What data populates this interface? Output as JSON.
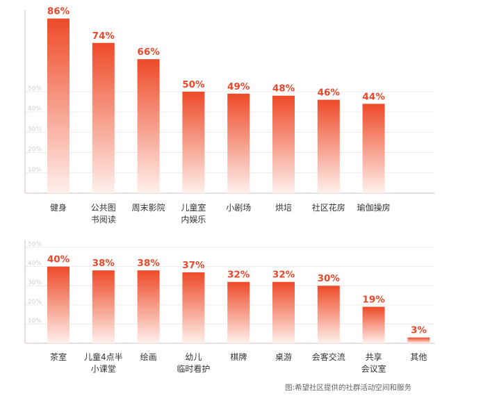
{
  "colors": {
    "bar_top": "#ee4a28",
    "bar_bottom": "#fff0ec",
    "label": "#e8482b",
    "axis": "#e3d4d0",
    "grid": "#ececec"
  },
  "chart_data": [
    {
      "type": "bar",
      "categories": [
        [
          "健身"
        ],
        [
          "公共图",
          "书阅读"
        ],
        [
          "周末影院"
        ],
        [
          "儿童室",
          "内娱乐"
        ],
        [
          "小剧场"
        ],
        [
          "烘培"
        ],
        [
          "社区花房"
        ],
        [
          "瑜伽操房"
        ]
      ],
      "values": [
        86,
        74,
        66,
        50,
        49,
        48,
        46,
        44
      ],
      "labels": [
        "86%",
        "74%",
        "66%",
        "50%",
        "49%",
        "48%",
        "46%",
        "44%"
      ],
      "y_ticks": [
        "10%",
        "20%",
        "30%",
        "40%",
        "50%"
      ],
      "ylim": [
        0,
        90
      ]
    },
    {
      "type": "bar",
      "categories": [
        [
          "茶室"
        ],
        [
          "儿童4点半",
          "小课堂"
        ],
        [
          "绘画"
        ],
        [
          "幼儿",
          "临时看护"
        ],
        [
          "棋牌"
        ],
        [
          "桌游"
        ],
        [
          "会客交流"
        ],
        [
          "共享",
          "会议室"
        ],
        [
          "其他"
        ]
      ],
      "values": [
        40,
        38,
        38,
        37,
        32,
        32,
        30,
        19,
        3
      ],
      "labels": [
        "40%",
        "38%",
        "38%",
        "37%",
        "32%",
        "32%",
        "30%",
        "19%",
        "3%"
      ],
      "y_ticks": [
        "10%",
        "20%",
        "30%",
        "40%",
        "50%"
      ],
      "ylim": [
        0,
        54
      ]
    }
  ],
  "source_note": "图:希望社区提供的社群活动空间和服务"
}
